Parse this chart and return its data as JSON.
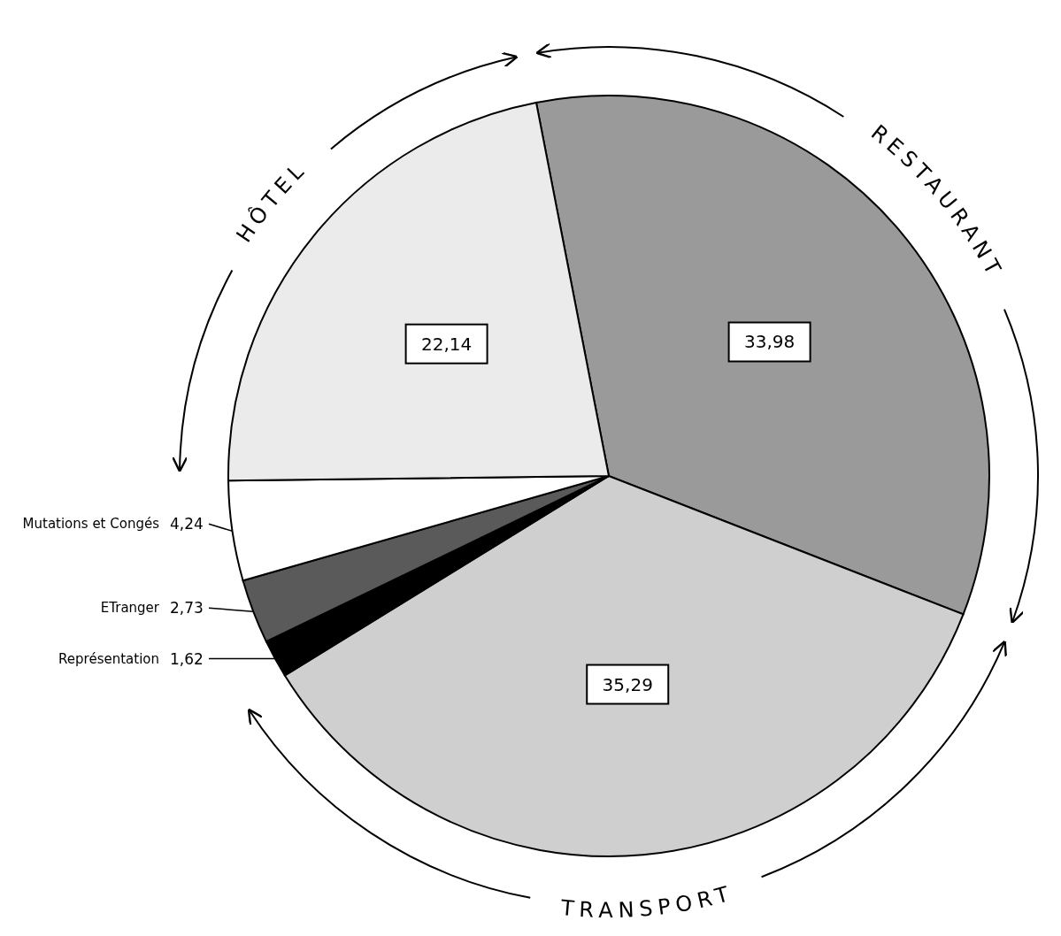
{
  "chart_data": {
    "type": "pie",
    "categories": [
      "RESTAURANT",
      "TRANSPORT",
      "Représentation",
      "ETranger",
      "Mutations et Congés",
      "HÔTEL"
    ],
    "values": [
      33.98,
      35.29,
      1.62,
      2.73,
      4.24,
      22.14
    ],
    "colors": [
      "#9a9a9a",
      "#cfcfcf",
      "#000000",
      "#5a5a5a",
      "#ffffff",
      "#ebebeb"
    ],
    "value_labels": [
      "33,98",
      "35,29",
      "1,62",
      "2,73",
      "4,24",
      "22,14"
    ]
  }
}
